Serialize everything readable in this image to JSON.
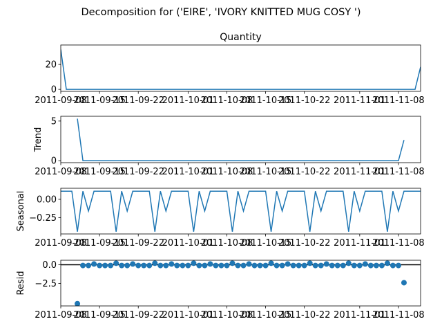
{
  "chart_data": [
    {
      "type": "line",
      "title": "Quantity",
      "ylabel": "",
      "ylim": [
        -1.6,
        35.6
      ],
      "yticks": [
        0,
        20
      ],
      "x": [
        "2011-09-08",
        "2011-09-09",
        "2011-09-10",
        "2011-09-11",
        "2011-09-12",
        "2011-09-13",
        "2011-09-14",
        "2011-09-15",
        "2011-09-16",
        "2011-09-17",
        "2011-09-18",
        "2011-09-19",
        "2011-09-20",
        "2011-09-21",
        "2011-09-22",
        "2011-09-23",
        "2011-09-24",
        "2011-09-25",
        "2011-09-26",
        "2011-09-27",
        "2011-09-28",
        "2011-09-29",
        "2011-09-30",
        "2011-10-01",
        "2011-10-02",
        "2011-10-03",
        "2011-10-04",
        "2011-10-05",
        "2011-10-06",
        "2011-10-07",
        "2011-10-08",
        "2011-10-09",
        "2011-10-10",
        "2011-10-11",
        "2011-10-12",
        "2011-10-13",
        "2011-10-14",
        "2011-10-15",
        "2011-10-16",
        "2011-10-17",
        "2011-10-18",
        "2011-10-19",
        "2011-10-20",
        "2011-10-21",
        "2011-10-22",
        "2011-10-23",
        "2011-10-24",
        "2011-10-25",
        "2011-10-26",
        "2011-10-27",
        "2011-10-28",
        "2011-10-29",
        "2011-10-30",
        "2011-10-31",
        "2011-11-01",
        "2011-11-02",
        "2011-11-03",
        "2011-11-04",
        "2011-11-05",
        "2011-11-06",
        "2011-11-07",
        "2011-11-08",
        "2011-11-09",
        "2011-11-10",
        "2011-11-11",
        "2011-11-12"
      ],
      "series": [
        {
          "values": [
            32,
            0,
            0,
            0,
            0,
            0,
            0,
            0,
            0,
            0,
            0,
            0,
            0,
            0,
            0,
            0,
            0,
            0,
            0,
            0,
            0,
            0,
            0,
            0,
            0,
            0,
            0,
            0,
            0,
            0,
            0,
            0,
            0,
            0,
            0,
            0,
            0,
            0,
            0,
            0,
            0,
            0,
            0,
            0,
            0,
            0,
            0,
            0,
            0,
            0,
            0,
            0,
            0,
            0,
            0,
            0,
            0,
            0,
            0,
            0,
            0,
            0,
            0,
            0,
            0,
            18
          ]
        }
      ],
      "color": "#1f77b4",
      "grid": false
    },
    {
      "type": "line",
      "title": "",
      "ylabel": "Trend",
      "ylim": [
        -0.25,
        5.6
      ],
      "yticks": [
        0,
        5
      ],
      "x_range": [
        "2011-09-11",
        "2011-11-09"
      ],
      "series": [
        {
          "values": [
            5.3,
            0,
            0,
            0,
            0,
            0,
            0,
            0,
            0,
            0,
            0,
            0,
            0,
            0,
            0,
            0,
            0,
            0,
            0,
            0,
            0,
            0,
            0,
            0,
            0,
            0,
            0,
            0,
            0,
            0,
            0,
            0,
            0,
            0,
            0,
            0,
            0,
            0,
            0,
            0,
            0,
            0,
            0,
            0,
            0,
            0,
            0,
            0,
            0,
            0,
            0,
            0,
            0,
            0,
            0,
            0,
            0,
            0,
            0,
            2.6
          ]
        }
      ],
      "color": "#1f77b4",
      "grid": false
    },
    {
      "type": "line",
      "title": "",
      "ylabel": "Seasonal",
      "ylim": [
        -0.47,
        0.15
      ],
      "yticks": [
        0.0,
        -0.25
      ],
      "ytick_labels": [
        "0.00",
        "−0.25"
      ],
      "weekly_pattern": [
        0.11,
        0.11,
        0.11,
        -0.44,
        0.11,
        -0.16,
        0.11
      ],
      "color": "#1f77b4",
      "grid": false
    },
    {
      "type": "scatter",
      "title": "",
      "ylabel": "Resid",
      "ylim": [
        -5.5,
        0.6
      ],
      "yticks": [
        0.0,
        -2.5
      ],
      "ytick_labels": [
        "0.0",
        "−2.5"
      ],
      "zero_line": true,
      "x_range": [
        "2011-09-11",
        "2011-11-09"
      ],
      "values": [
        -5.2,
        -0.1,
        -0.1,
        0.1,
        -0.1,
        -0.1,
        -0.1,
        0.2,
        -0.1,
        -0.1,
        0.1,
        -0.1,
        -0.1,
        -0.1,
        0.2,
        -0.1,
        -0.1,
        0.1,
        -0.1,
        -0.1,
        -0.1,
        0.2,
        -0.1,
        -0.1,
        0.1,
        -0.1,
        -0.1,
        -0.1,
        0.2,
        -0.1,
        -0.1,
        0.1,
        -0.1,
        -0.1,
        -0.1,
        0.2,
        -0.1,
        -0.1,
        0.1,
        -0.1,
        -0.1,
        -0.1,
        0.2,
        -0.1,
        -0.1,
        0.1,
        -0.1,
        -0.1,
        -0.1,
        0.2,
        -0.1,
        -0.1,
        0.1,
        -0.1,
        -0.1,
        -0.1,
        0.2,
        -0.1,
        -0.1,
        -2.4
      ],
      "color": "#1f77b4",
      "grid": false
    }
  ],
  "figure": {
    "suptitle": "Decomposition for ('EIRE', 'IVORY KNITTED MUG COSY ')"
  },
  "xaxis": {
    "start": "2011-09-08",
    "end": "2011-11-12",
    "ticks": [
      "2011-09-08",
      "2011-09-15",
      "2011-09-22",
      "2011-10-01",
      "2011-10-08",
      "2011-10-15",
      "2011-10-22",
      "2011-11-01",
      "2011-11-08"
    ]
  },
  "axis_ticks": {
    "q_y": [
      "0",
      "20"
    ],
    "t_y": [
      "0",
      "5"
    ]
  }
}
